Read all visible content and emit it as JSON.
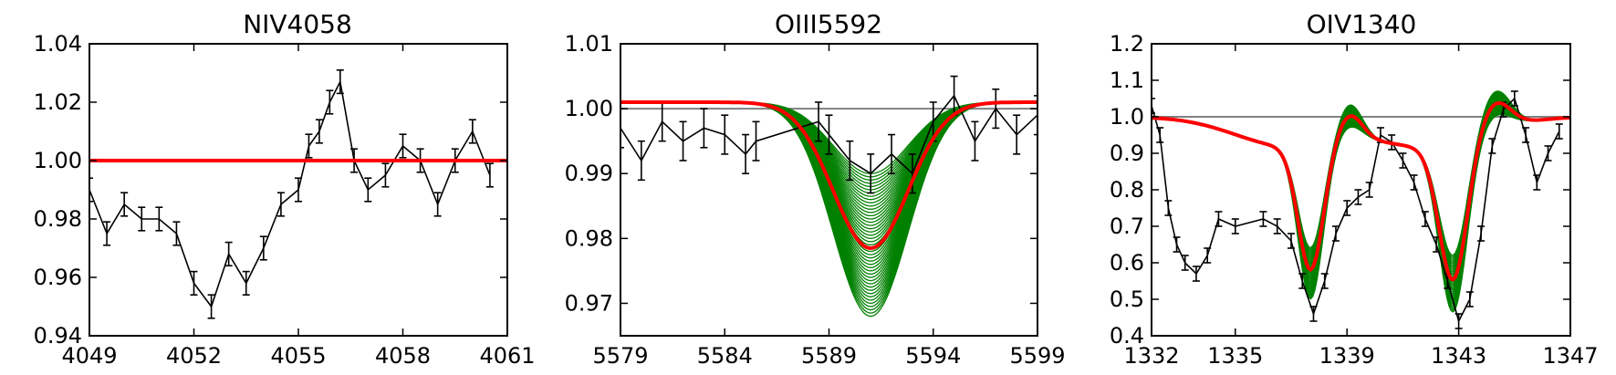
{
  "colors": {
    "observed": "#000000",
    "models": "#008000",
    "best_fit": "#ff0000",
    "reference": "#808080"
  },
  "chart_data": [
    {
      "type": "line",
      "title": "NIV4058",
      "xlabel": "",
      "ylabel": "",
      "xlim": [
        4049,
        4061
      ],
      "ylim": [
        0.94,
        1.04
      ],
      "xticks": [
        4049,
        4052,
        4055,
        4058,
        4061
      ],
      "xtick_labels": [
        "4049",
        "4052",
        "4055",
        "4058",
        "4061"
      ],
      "yticks": [
        0.94,
        0.96,
        0.98,
        1.0,
        1.02,
        1.04
      ],
      "ytick_labels": [
        "0.94",
        "0.96",
        "0.98",
        "1.00",
        "1.02",
        "1.04"
      ],
      "reference_level": 1.0,
      "model_kind": "single",
      "model_params": {
        "continuum": 1.0,
        "center": 56.8,
        "sigma": 1.6,
        "em_center": 53.6,
        "em_sigma": 0.8,
        "em_amp": 0.004,
        "em2_center": 60.0,
        "em2_sigma": 0.9,
        "em2_amp": 0.004,
        "depth_min": 0.006,
        "depth_max": 0.02,
        "best_depth": 0.011,
        "n_models": 40,
        "xmin": 4049,
        "xmax": 4061
      },
      "observed": {
        "x": [
          4049.0,
          4049.5,
          4050.0,
          4050.5,
          4051.0,
          4051.5,
          4052.0,
          4052.5,
          4053.0,
          4053.5,
          4054.0,
          4054.5,
          4055.0,
          4055.3,
          4055.6,
          4055.9,
          4056.2,
          4056.6,
          4057.0,
          4057.5,
          4058.0,
          4058.5,
          4059.0,
          4059.5,
          4060.0,
          4060.5
        ],
        "y": [
          0.99,
          0.975,
          0.985,
          0.98,
          0.98,
          0.975,
          0.958,
          0.95,
          0.968,
          0.958,
          0.97,
          0.985,
          0.99,
          1.005,
          1.01,
          1.02,
          1.027,
          1.0,
          0.99,
          0.995,
          1.005,
          1.0,
          0.985,
          1.0,
          1.01,
          0.995
        ],
        "err": 0.004
      },
      "series": [
        {
          "name": "",
          "role": "models"
        },
        {
          "name": "",
          "role": "best_fit"
        },
        {
          "name": "",
          "role": "observed"
        }
      ]
    },
    {
      "type": "line",
      "title": "OIII5592",
      "xlabel": "",
      "ylabel": "",
      "xlim": [
        5579,
        5599
      ],
      "ylim": [
        0.965,
        1.01
      ],
      "xticks": [
        5579,
        5584,
        5589,
        5594,
        5599
      ],
      "xtick_labels": [
        "5579",
        "5584",
        "5589",
        "5594",
        "5599"
      ],
      "yticks": [
        0.97,
        0.98,
        0.99,
        1.0,
        1.01
      ],
      "ytick_labels": [
        "0.97",
        "0.98",
        "0.99",
        "1.00",
        "1.01"
      ],
      "reference_level": 1.0,
      "model_kind": "single",
      "model_params": {
        "continuum": 1.001,
        "center": 5591,
        "sigma": 1.8,
        "em_center": 0,
        "em_sigma": 1,
        "em_amp": 0,
        "em2_center": 0,
        "em2_sigma": 1,
        "em2_amp": 0,
        "depth_min": 0.011,
        "depth_max": 0.033,
        "best_depth": 0.0225,
        "n_models": 45,
        "xmin": 5579,
        "xmax": 5599
      },
      "observed": {
        "x": [
          5579.0,
          5580.0,
          5581.0,
          5582.0,
          5583.0,
          5584.0,
          5585.0,
          5585.5,
          5588.5,
          5589.0,
          5590.0,
          5591.0,
          5592.0,
          5593.0,
          5594.0,
          5595.0,
          5596.0,
          5597.0,
          5598.0,
          5599.0
        ],
        "y": [
          0.997,
          0.992,
          0.998,
          0.995,
          0.997,
          0.996,
          0.993,
          0.995,
          0.998,
          0.996,
          0.992,
          0.99,
          0.993,
          0.99,
          0.998,
          1.002,
          0.995,
          1.0,
          0.996,
          0.999
        ],
        "err": 0.003
      },
      "series": [
        {
          "name": "",
          "role": "models"
        },
        {
          "name": "",
          "role": "best_fit"
        },
        {
          "name": "",
          "role": "observed"
        }
      ]
    },
    {
      "type": "line",
      "title": "OIV1340",
      "xlabel": "",
      "ylabel": "",
      "xlim": [
        1332,
        1347
      ],
      "ylim": [
        0.4,
        1.2
      ],
      "xticks": [
        1332,
        1335,
        1339,
        1343,
        1347
      ],
      "xtick_labels": [
        "1332",
        "1335",
        "1339",
        "1343",
        "1347"
      ],
      "yticks": [
        0.4,
        0.5,
        0.6,
        0.7,
        0.8,
        0.9,
        1.0,
        1.1,
        1.2
      ],
      "ytick_labels": [
        "0.4",
        "0.5",
        "0.6",
        "0.7",
        "0.8",
        "0.9",
        "1.0",
        "1.1",
        "1.2"
      ],
      "reference_level": 1.0,
      "model_kind": "pcygni",
      "model_params": {
        "continuum": 1.0,
        "c1": 1337.7,
        "c2": 1342.8,
        "s1": 0.45,
        "s2": 0.5,
        "w1": 1.9,
        "w2": 1.9,
        "e1": 1339.1,
        "e2": 1344.3,
        "es1": 0.45,
        "es2": 0.55,
        "absmin": 0.28,
        "absmax": 0.42,
        "emmin": 0.04,
        "emmax": 0.1,
        "best_abs": 0.34,
        "best_em": 0.07,
        "n_models": 35,
        "xmin": 1332,
        "xmax": 1347
      },
      "observed": {
        "x": [
          1332.0,
          1332.3,
          1332.6,
          1332.9,
          1333.2,
          1333.6,
          1334.0,
          1334.4,
          1335.0,
          1336.0,
          1336.5,
          1337.0,
          1337.4,
          1337.8,
          1338.2,
          1338.6,
          1339.0,
          1339.4,
          1339.8,
          1340.2,
          1340.6,
          1341.0,
          1341.4,
          1341.8,
          1342.2,
          1342.6,
          1343.0,
          1343.4,
          1343.8,
          1344.2,
          1344.6,
          1345.0,
          1345.4,
          1345.8,
          1346.2,
          1346.6
        ],
        "y": [
          1.03,
          0.95,
          0.75,
          0.65,
          0.6,
          0.57,
          0.62,
          0.72,
          0.7,
          0.72,
          0.7,
          0.66,
          0.55,
          0.46,
          0.55,
          0.68,
          0.75,
          0.78,
          0.8,
          0.95,
          0.93,
          0.88,
          0.82,
          0.72,
          0.65,
          0.55,
          0.44,
          0.5,
          0.68,
          0.92,
          1.02,
          1.05,
          0.95,
          0.82,
          0.9,
          0.96
        ],
        "err": 0.02
      },
      "series": [
        {
          "name": "",
          "role": "models"
        },
        {
          "name": "",
          "role": "best_fit"
        },
        {
          "name": "",
          "role": "observed"
        }
      ]
    }
  ]
}
